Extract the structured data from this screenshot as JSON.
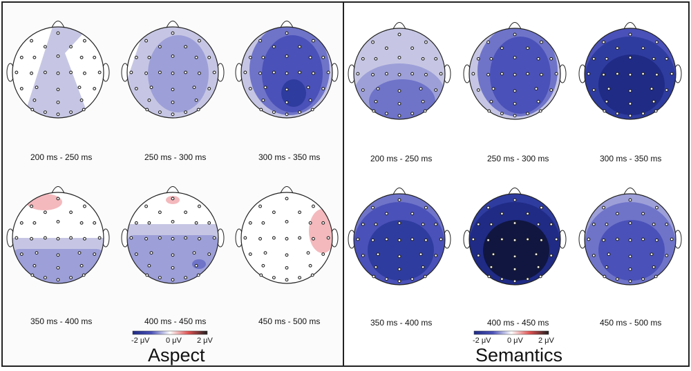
{
  "colors": {
    "negative_scale": [
      "#c6c6e4",
      "#9d9fd8",
      "#6f74c9",
      "#4a51b8",
      "#2f3c9f",
      "#1f2b85",
      "#101640"
    ],
    "positive": "#f4b9bd",
    "electrode": "#222222"
  },
  "colorbar_ticks": [
    "-2 μV",
    "0 μV",
    "2 μV"
  ],
  "panels": [
    {
      "title": "Aspect",
      "maps": [
        {
          "label": "200 ms - 250 ms",
          "level": 1,
          "pattern": "wedge"
        },
        {
          "label": "250 ms - 300 ms",
          "level": 2,
          "pattern": "broad"
        },
        {
          "label": "300 ms - 350 ms",
          "level": 4,
          "pattern": "broad-strong"
        },
        {
          "label": "350 ms - 400 ms",
          "level": 2,
          "pattern": "posterior-band",
          "positive": "frontal-left"
        },
        {
          "label": "400 ms - 450 ms",
          "level": 2,
          "pattern": "posterior-band-wide",
          "positive": "frontal-small"
        },
        {
          "label": "450 ms - 500 ms",
          "level": 0,
          "pattern": "none",
          "positive": "right-temporal"
        }
      ]
    },
    {
      "title": "Semantics",
      "maps": [
        {
          "label": "200 ms - 250 ms",
          "level": 3,
          "pattern": "posterior"
        },
        {
          "label": "250 ms - 300 ms",
          "level": 4,
          "pattern": "broad"
        },
        {
          "label": "300 ms - 350 ms",
          "level": 6,
          "pattern": "full-strong"
        },
        {
          "label": "350 ms - 400 ms",
          "level": 5,
          "pattern": "full"
        },
        {
          "label": "400 ms - 450 ms",
          "level": 7,
          "pattern": "full-extreme"
        },
        {
          "label": "450 ms - 500 ms",
          "level": 4,
          "pattern": "full-mild"
        }
      ]
    }
  ]
}
